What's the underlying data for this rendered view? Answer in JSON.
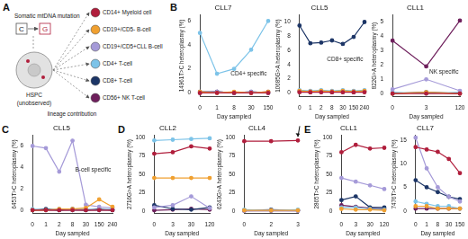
{
  "panel_letters": [
    "A",
    "B",
    "C",
    "D",
    "E"
  ],
  "diagram": {
    "mutation_label": "Somatic mtDNA mutation",
    "from": "C",
    "to": "G",
    "cell": "HSPC",
    "cell_note": "(unobserved)",
    "lineage_label": "lineage contribution",
    "lineages": [
      {
        "label": "CD14+ Myeloid cell",
        "color": "#b01e3c"
      },
      {
        "label": "CD19+/CD5- B-cell",
        "color": "#f0a030"
      },
      {
        "label": "CD19+/CD5+CLL B-cell",
        "color": "#a59ad8"
      },
      {
        "label": "CD4+ T-cell",
        "color": "#7cc3e8"
      },
      {
        "label": "CD8+ T-cell",
        "color": "#1c3566"
      },
      {
        "label": "CD56+ NK T-cell",
        "color": "#6e1f5c"
      }
    ]
  },
  "chart_data": [
    {
      "type": "line",
      "title": "CLL7",
      "x_label": "Day sampled",
      "y_label": "14961T>C heteroplasmy (%)",
      "annotation": "CD4+ specific",
      "marker": "circle",
      "grid": false,
      "categories": [
        "0",
        "1",
        "8",
        "30",
        "150"
      ],
      "ylim": [
        -0.3,
        6.5
      ],
      "yticks": [
        0,
        2,
        4,
        6
      ],
      "series": [
        {
          "name": "CD14+ Myeloid cell",
          "color": "#b01e3c",
          "values": [
            0,
            0,
            0,
            0,
            0
          ]
        },
        {
          "name": "CD19+/CD5- B-cell",
          "color": "#f0a030",
          "values": [
            0.1,
            0,
            0.1,
            0,
            0.1
          ]
        },
        {
          "name": "CD19+/CD5+CLL B-cell",
          "color": "#a59ad8",
          "values": [
            0.1,
            0.1,
            0,
            0.1,
            0
          ]
        },
        {
          "name": "CD4+ T-cell",
          "color": "#7cc3e8",
          "values": [
            5.0,
            1.6,
            2.0,
            3.6,
            6.0
          ]
        },
        {
          "name": "CD8+ T-cell",
          "color": "#1c3566",
          "values": [
            0.1,
            0.1,
            0,
            0.1,
            0
          ]
        },
        {
          "name": "CD56+ NK T-cell",
          "color": "#6e1f5c",
          "values": [
            0,
            0.1,
            0,
            0,
            0.1
          ]
        }
      ]
    },
    {
      "type": "line",
      "title": "CLL5",
      "x_label": "Day sampled",
      "y_label": "10685G>A heteroplasmy (%)",
      "annotation": "CD8+ specific",
      "marker": "circle",
      "grid": false,
      "categories": [
        "0",
        "1",
        "2",
        "8",
        "30",
        "150",
        "240"
      ],
      "ylim": [
        -0.5,
        11
      ],
      "yticks": [
        0,
        2,
        4,
        6,
        8,
        10
      ],
      "series": [
        {
          "name": "CD14+ Myeloid cell",
          "color": "#b01e3c",
          "values": [
            0.1,
            0.1,
            0.1,
            0.1,
            0.1,
            0.1,
            0.1
          ]
        },
        {
          "name": "CD19+/CD5- B-cell",
          "color": "#f0a030",
          "values": [
            0.3,
            0.2,
            0.3,
            0.2,
            0.3,
            0.2,
            0.3
          ]
        },
        {
          "name": "CD19+/CD5+CLL B-cell",
          "color": "#a59ad8",
          "values": [
            0.2,
            0.2,
            0.1,
            0.2,
            0.1,
            0.2,
            0.2
          ]
        },
        {
          "name": "CD4+ T-cell",
          "color": "#7cc3e8",
          "values": [
            0.4,
            0.3,
            0.4,
            0.3,
            0.4,
            0.3,
            0.4
          ]
        },
        {
          "name": "CD8+ T-cell",
          "color": "#1c3566",
          "values": [
            9.5,
            7.0,
            7.1,
            7.4,
            6.9,
            7.9,
            10.0
          ]
        },
        {
          "name": "CD56+ NK T-cell",
          "color": "#6e1f5c",
          "values": [
            0.2,
            0.1,
            0.2,
            0.1,
            0.2,
            0.1,
            0.2
          ]
        }
      ]
    },
    {
      "type": "line",
      "title": "CLL1",
      "x_label": "Day sampled",
      "y_label": "822G>A heteroplasmy (%)",
      "annotation": "NK specific",
      "marker": "circle",
      "grid": false,
      "categories": [
        "0",
        "3",
        "120"
      ],
      "ylim": [
        -0.2,
        5.5
      ],
      "yticks": [
        0,
        1,
        2,
        3,
        4,
        5
      ],
      "series": [
        {
          "name": "CD14+ Myeloid cell",
          "color": "#b01e3c",
          "values": [
            0,
            0,
            0
          ]
        },
        {
          "name": "CD19+/CD5- B-cell",
          "color": "#f0a030",
          "values": [
            0,
            0.1,
            0
          ]
        },
        {
          "name": "CD19+/CD5+CLL B-cell",
          "color": "#a59ad8",
          "values": [
            0.3,
            1.0,
            0.2
          ]
        },
        {
          "name": "CD4+ T-cell",
          "color": "#7cc3e8",
          "values": [
            0.1,
            0,
            0.1
          ]
        },
        {
          "name": "CD8+ T-cell",
          "color": "#1c3566",
          "values": [
            0,
            0.1,
            0
          ]
        },
        {
          "name": "CD56+ NK T-cell",
          "color": "#6e1f5c",
          "values": [
            3.7,
            1.9,
            5.1
          ]
        }
      ]
    },
    {
      "type": "line",
      "title": "CLL5",
      "x_label": "Day sampled",
      "y_label": "6453T>C heteroplasmy (%)",
      "annotation": "B-cell specific",
      "marker": "circle",
      "grid": false,
      "categories": [
        "0",
        "1",
        "2",
        "8",
        "30",
        "150",
        "240"
      ],
      "ylim": [
        -0.3,
        7
      ],
      "yticks": [
        0,
        2,
        4,
        6
      ],
      "series": [
        {
          "name": "CD14+ Myeloid cell",
          "color": "#b01e3c",
          "values": [
            0,
            0,
            0,
            0,
            0,
            0,
            0
          ]
        },
        {
          "name": "CD19+/CD5- B-cell",
          "color": "#f0a030",
          "values": [
            0,
            0,
            0.1,
            0.1,
            0.2,
            1.0,
            0.3
          ]
        },
        {
          "name": "CD19+/CD5+CLL B-cell",
          "color": "#a59ad8",
          "values": [
            6.0,
            5.8,
            3.6,
            6.5,
            0.5,
            0.3,
            0.2
          ]
        },
        {
          "name": "CD4+ T-cell",
          "color": "#7cc3e8",
          "values": [
            0.1,
            0,
            0.1,
            0,
            0.1,
            0,
            0.1
          ]
        },
        {
          "name": "CD8+ T-cell",
          "color": "#1c3566",
          "values": [
            0,
            0.1,
            0,
            0.1,
            0,
            0.1,
            0
          ]
        },
        {
          "name": "CD56+ NK T-cell",
          "color": "#6e1f5c",
          "values": [
            0,
            0,
            0,
            0,
            0,
            0,
            0
          ]
        }
      ]
    },
    {
      "type": "line",
      "title": "CLL2",
      "x_label": "Day sampled",
      "y_label": "2716G>A heteroplasmy (%)",
      "marker": "circle",
      "grid": false,
      "categories": [
        "0",
        "3",
        "30",
        "120"
      ],
      "ylim": [
        -3,
        103
      ],
      "yticks": [
        0,
        25,
        50,
        75,
        100
      ],
      "series": [
        {
          "name": "CD14+ Myeloid cell",
          "color": "#b01e3c",
          "values": [
            78,
            80,
            88,
            85
          ]
        },
        {
          "name": "CD19+/CD5- B-cell",
          "color": "#f0a030",
          "values": [
            45,
            45,
            45,
            45
          ]
        },
        {
          "name": "CD19+/CD5+CLL B-cell",
          "color": "#a59ad8",
          "values": [
            5,
            8,
            20,
            4
          ]
        },
        {
          "name": "CD4+ T-cell",
          "color": "#7cc3e8",
          "values": [
            96,
            97,
            98,
            99
          ]
        },
        {
          "name": "CD8+ T-cell",
          "color": "#1c3566",
          "values": [
            8,
            3,
            2,
            5
          ]
        },
        {
          "name": "CD56+ NK T-cell",
          "color": "#6e1f5c",
          "values": [
            1,
            2,
            3,
            2
          ]
        }
      ]
    },
    {
      "type": "line",
      "title": "CLL4",
      "x_label": "Day sampled",
      "y_label": "6243G>A heteroplasmy (%)",
      "marker": "circle",
      "grid": false,
      "categories": [
        "0",
        "2",
        "3"
      ],
      "ylim": [
        -3,
        103
      ],
      "yticks": [
        0,
        25,
        50,
        75,
        100
      ],
      "series": [
        {
          "name": "CD14+ Myeloid cell",
          "color": "#b01e3c",
          "values": [
            95,
            95,
            96
          ]
        },
        {
          "name": "CD19+/CD5- B-cell",
          "color": "#f0a030",
          "values": [
            1,
            1,
            1
          ]
        },
        {
          "name": "CD19+/CD5+CLL B-cell",
          "color": "#a59ad8",
          "values": [
            0.5,
            1,
            0.5
          ]
        },
        {
          "name": "CD4+ T-cell",
          "color": "#7cc3e8",
          "values": [
            2,
            1,
            2
          ]
        },
        {
          "name": "CD8+ T-cell",
          "color": "#1c3566",
          "values": [
            1,
            2,
            1
          ]
        },
        {
          "name": "CD56+ NK T-cell",
          "color": "#6e1f5c",
          "values": [
            0.5,
            0.5,
            0.5
          ]
        }
      ]
    },
    {
      "type": "line",
      "title": "CLL1",
      "x_label": "Day sampled",
      "y_label": "2865T>C heteroplasmy (%)",
      "marker": "circle",
      "grid": false,
      "categories": [
        "0",
        "3",
        "30",
        "120"
      ],
      "ylim": [
        -3,
        103
      ],
      "yticks": [
        0,
        25,
        50,
        75,
        100
      ],
      "series": [
        {
          "name": "CD14+ Myeloid cell",
          "color": "#b01e3c",
          "values": [
            80,
            90,
            85,
            86
          ]
        },
        {
          "name": "CD19+/CD5- B-cell",
          "color": "#f0a030",
          "values": [
            3,
            2,
            2,
            1
          ]
        },
        {
          "name": "CD19+/CD5+CLL B-cell",
          "color": "#a59ad8",
          "values": [
            45,
            40,
            35,
            30
          ]
        },
        {
          "name": "CD4+ T-cell",
          "color": "#7cc3e8",
          "values": [
            5,
            5,
            3,
            2
          ]
        },
        {
          "name": "CD8+ T-cell",
          "color": "#1c3566",
          "values": [
            15,
            20,
            5,
            5
          ]
        },
        {
          "name": "CD56+ NK T-cell",
          "color": "#6e1f5c",
          "values": [
            8,
            6,
            4,
            3
          ]
        }
      ]
    },
    {
      "type": "line",
      "title": "CLL7",
      "x_label": "Day sampled",
      "y_label": "7476T>C heteroplasmy (%)",
      "marker": "circle",
      "grid": false,
      "categories": [
        "0",
        "1",
        "8",
        "30",
        "150"
      ],
      "ylim": [
        -0.5,
        16
      ],
      "yticks": [
        0,
        5,
        10,
        15
      ],
      "series": [
        {
          "name": "CD14+ Myeloid cell",
          "color": "#b01e3c",
          "values": [
            13.5,
            13,
            12.5,
            11,
            8
          ]
        },
        {
          "name": "CD19+/CD5- B-cell",
          "color": "#f0a030",
          "values": [
            1,
            1,
            0.5,
            0.5,
            0.5
          ]
        },
        {
          "name": "CD19+/CD5+CLL B-cell",
          "color": "#a59ad8",
          "values": [
            15.5,
            9,
            5,
            3,
            2
          ]
        },
        {
          "name": "CD4+ T-cell",
          "color": "#7cc3e8",
          "values": [
            2,
            1.5,
            1,
            1,
            0.5
          ]
        },
        {
          "name": "CD8+ T-cell",
          "color": "#1c3566",
          "values": [
            6.5,
            5,
            4,
            3,
            2.5
          ]
        },
        {
          "name": "CD56+ NK T-cell",
          "color": "#6e1f5c",
          "values": [
            0.5,
            0.5,
            0.5,
            0.5,
            0.5
          ]
        }
      ]
    }
  ]
}
